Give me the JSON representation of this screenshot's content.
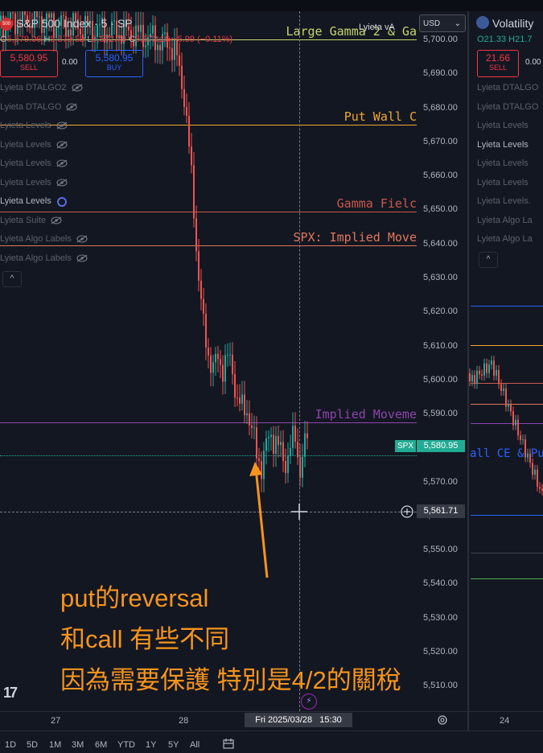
{
  "chart": {
    "symbol_badge": "500",
    "title": "S&P 500 Index · 5 · SP",
    "ohlc": {
      "o_label": "O",
      "o": "5,579.06",
      "h_label": "H",
      "h": "5,579.59",
      "l_label": "L",
      "l": "5,572.79",
      "c_label": "C",
      "c": "5,573.16",
      "change": "−5.99 (−0.11%)"
    },
    "sell": {
      "price": "5,580.95",
      "label": "SELL"
    },
    "spread": "0.00",
    "buy": {
      "price": "5,580.95",
      "label": "BUY"
    },
    "indicators": [
      {
        "name": "Lyieta DTALGO2",
        "visible": false
      },
      {
        "name": "Lyieta DTALGO",
        "visible": false
      },
      {
        "name": "Lyieta Levels",
        "visible": false
      },
      {
        "name": "Lyieta Levels",
        "visible": false
      },
      {
        "name": "Lyieta Levels",
        "visible": false
      },
      {
        "name": "Lyieta Levels",
        "visible": false
      },
      {
        "name": "Lyieta Levels",
        "visible": true
      },
      {
        "name": "Lyieta Suite",
        "visible": false
      },
      {
        "name": "Lyieta Algo Labels",
        "visible": false
      },
      {
        "name": "Lyieta Algo Labels",
        "visible": false
      }
    ],
    "collapse_icon": "^",
    "top_right_label": "Lyieta vA",
    "currency": "USD",
    "price_axis": [
      "5,700.00",
      "5,690.00",
      "5,680.00",
      "5,670.00",
      "5,660.00",
      "5,650.00",
      "5,640.00",
      "5,630.00",
      "5,620.00",
      "5,610.00",
      "5,600.00",
      "5,590.00",
      "5,580.00",
      "5,570.00",
      "5,560.00",
      "5,550.00",
      "5,540.00",
      "5,530.00",
      "5,520.00",
      "5,510.00"
    ],
    "levels": [
      {
        "label": "Large Gamma 2 & Ga",
        "price": 5700.0,
        "color": "#c6d56b"
      },
      {
        "label": "Put Wall C",
        "price": 5675.0,
        "color": "#f0a830"
      },
      {
        "label": "Gamma Fielc",
        "price": 5649.5,
        "color": "#c95a4a"
      },
      {
        "label": "SPX: Implied Move",
        "price": 5639.5,
        "color": "#e2765a"
      },
      {
        "label": "Implied Moveme",
        "price": 5587.5,
        "color": "#8e44ad"
      }
    ],
    "spx_tag": {
      "label": "SPX",
      "price": "5,580.95"
    },
    "crosshair_price": "5,561.71",
    "time_axis": [
      "27",
      "28"
    ],
    "crosshair_time": "Fri 2025/03/28   15:30",
    "logo": "17",
    "settings_icon": "gear-icon"
  },
  "annotation": {
    "lines": [
      "put的reversal",
      "和call 有些不同",
      "因為需要保護 特別是4/2的關稅"
    ],
    "color": "#f7941d"
  },
  "right_chart": {
    "title": "Volatility",
    "ohlc": "O21.33 H21.7",
    "sell": {
      "price": "21.66",
      "label": "SELL"
    },
    "spread": "0.00",
    "indicators": [
      {
        "name": "Lyieta DTALGO",
        "visible": false
      },
      {
        "name": "Lyieta DTALGO",
        "visible": false
      },
      {
        "name": "Lyieta Levels",
        "visible": false
      },
      {
        "name": "Lyieta Levels",
        "visible": true
      },
      {
        "name": "Lyieta Levels",
        "visible": false
      },
      {
        "name": "Lyieta Levels",
        "visible": false
      },
      {
        "name": "Lyieta Levels.",
        "visible": false
      },
      {
        "name": "Lyieta Algo La",
        "visible": false
      },
      {
        "name": "Lyieta Algo La",
        "visible": false
      }
    ],
    "level_text": "all CE & Put",
    "time_axis": [
      "24"
    ]
  },
  "bottom_toolbar": [
    "1D",
    "5D",
    "1M",
    "3M",
    "6M",
    "YTD",
    "1Y",
    "5Y",
    "All"
  ]
}
